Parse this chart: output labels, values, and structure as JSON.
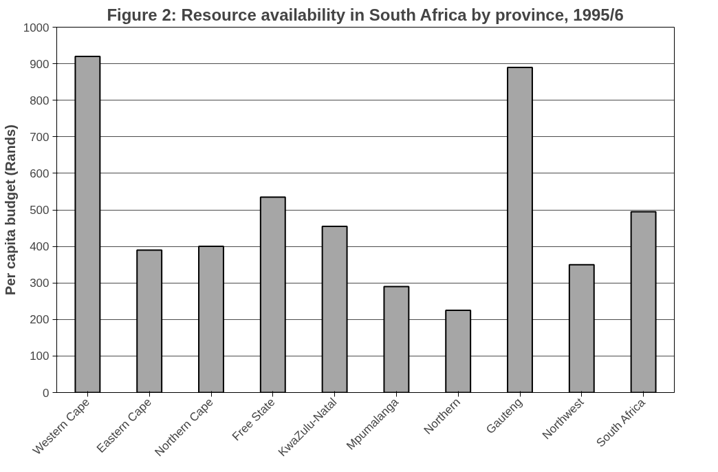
{
  "chart_data": {
    "type": "bar",
    "title": "Figure 2: Resource availability in South Africa by province, 1995/6",
    "ylabel": "Per capita budget (Rands)",
    "categories": [
      "Western Cape",
      "Eastern Cape",
      "Northern Cape",
      "Free State",
      "KwaZulu-Natal",
      "Mpumalanga",
      "Northern",
      "Gauteng",
      "Northwest",
      "South Africa"
    ],
    "values": [
      920,
      390,
      400,
      535,
      455,
      290,
      225,
      890,
      350,
      495
    ],
    "color": "#a6a6a6",
    "ylim": [
      0,
      1000
    ],
    "yticks": [
      0,
      100,
      200,
      300,
      400,
      500,
      600,
      700,
      800,
      900,
      1000
    ],
    "grid": "y"
  }
}
